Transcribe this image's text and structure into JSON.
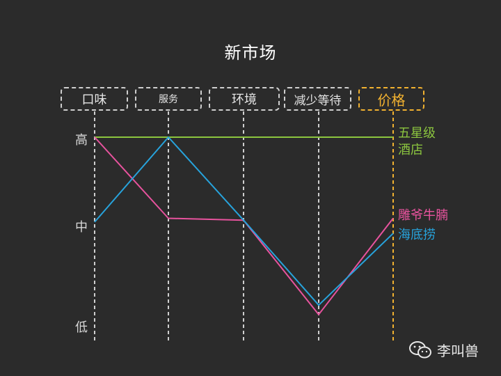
{
  "title": "新市场",
  "chart_data": {
    "type": "line",
    "categories": [
      "口味",
      "服务",
      "环境",
      "减少等待",
      "价格"
    ],
    "y_levels": [
      "高",
      "中",
      "低"
    ],
    "ylim": [
      0,
      1
    ],
    "series": [
      {
        "name": "五星级酒店",
        "label": "五星级\n酒店",
        "color": "#8cc63f",
        "values": [
          1.0,
          1.0,
          1.0,
          1.0,
          1.0
        ]
      },
      {
        "name": "雕爷牛腩",
        "label": "雕爷牛腩",
        "color": "#e8539e",
        "values": [
          1.0,
          0.57,
          0.56,
          0.06,
          0.57
        ]
      },
      {
        "name": "海底捞",
        "label": "海底捞",
        "color": "#27a3dc",
        "values": [
          0.55,
          1.0,
          0.56,
          0.11,
          0.49
        ]
      }
    ],
    "accent_color": "#f2b230"
  },
  "watermark": {
    "text": "李叫兽",
    "icon": "wechat-icon"
  }
}
